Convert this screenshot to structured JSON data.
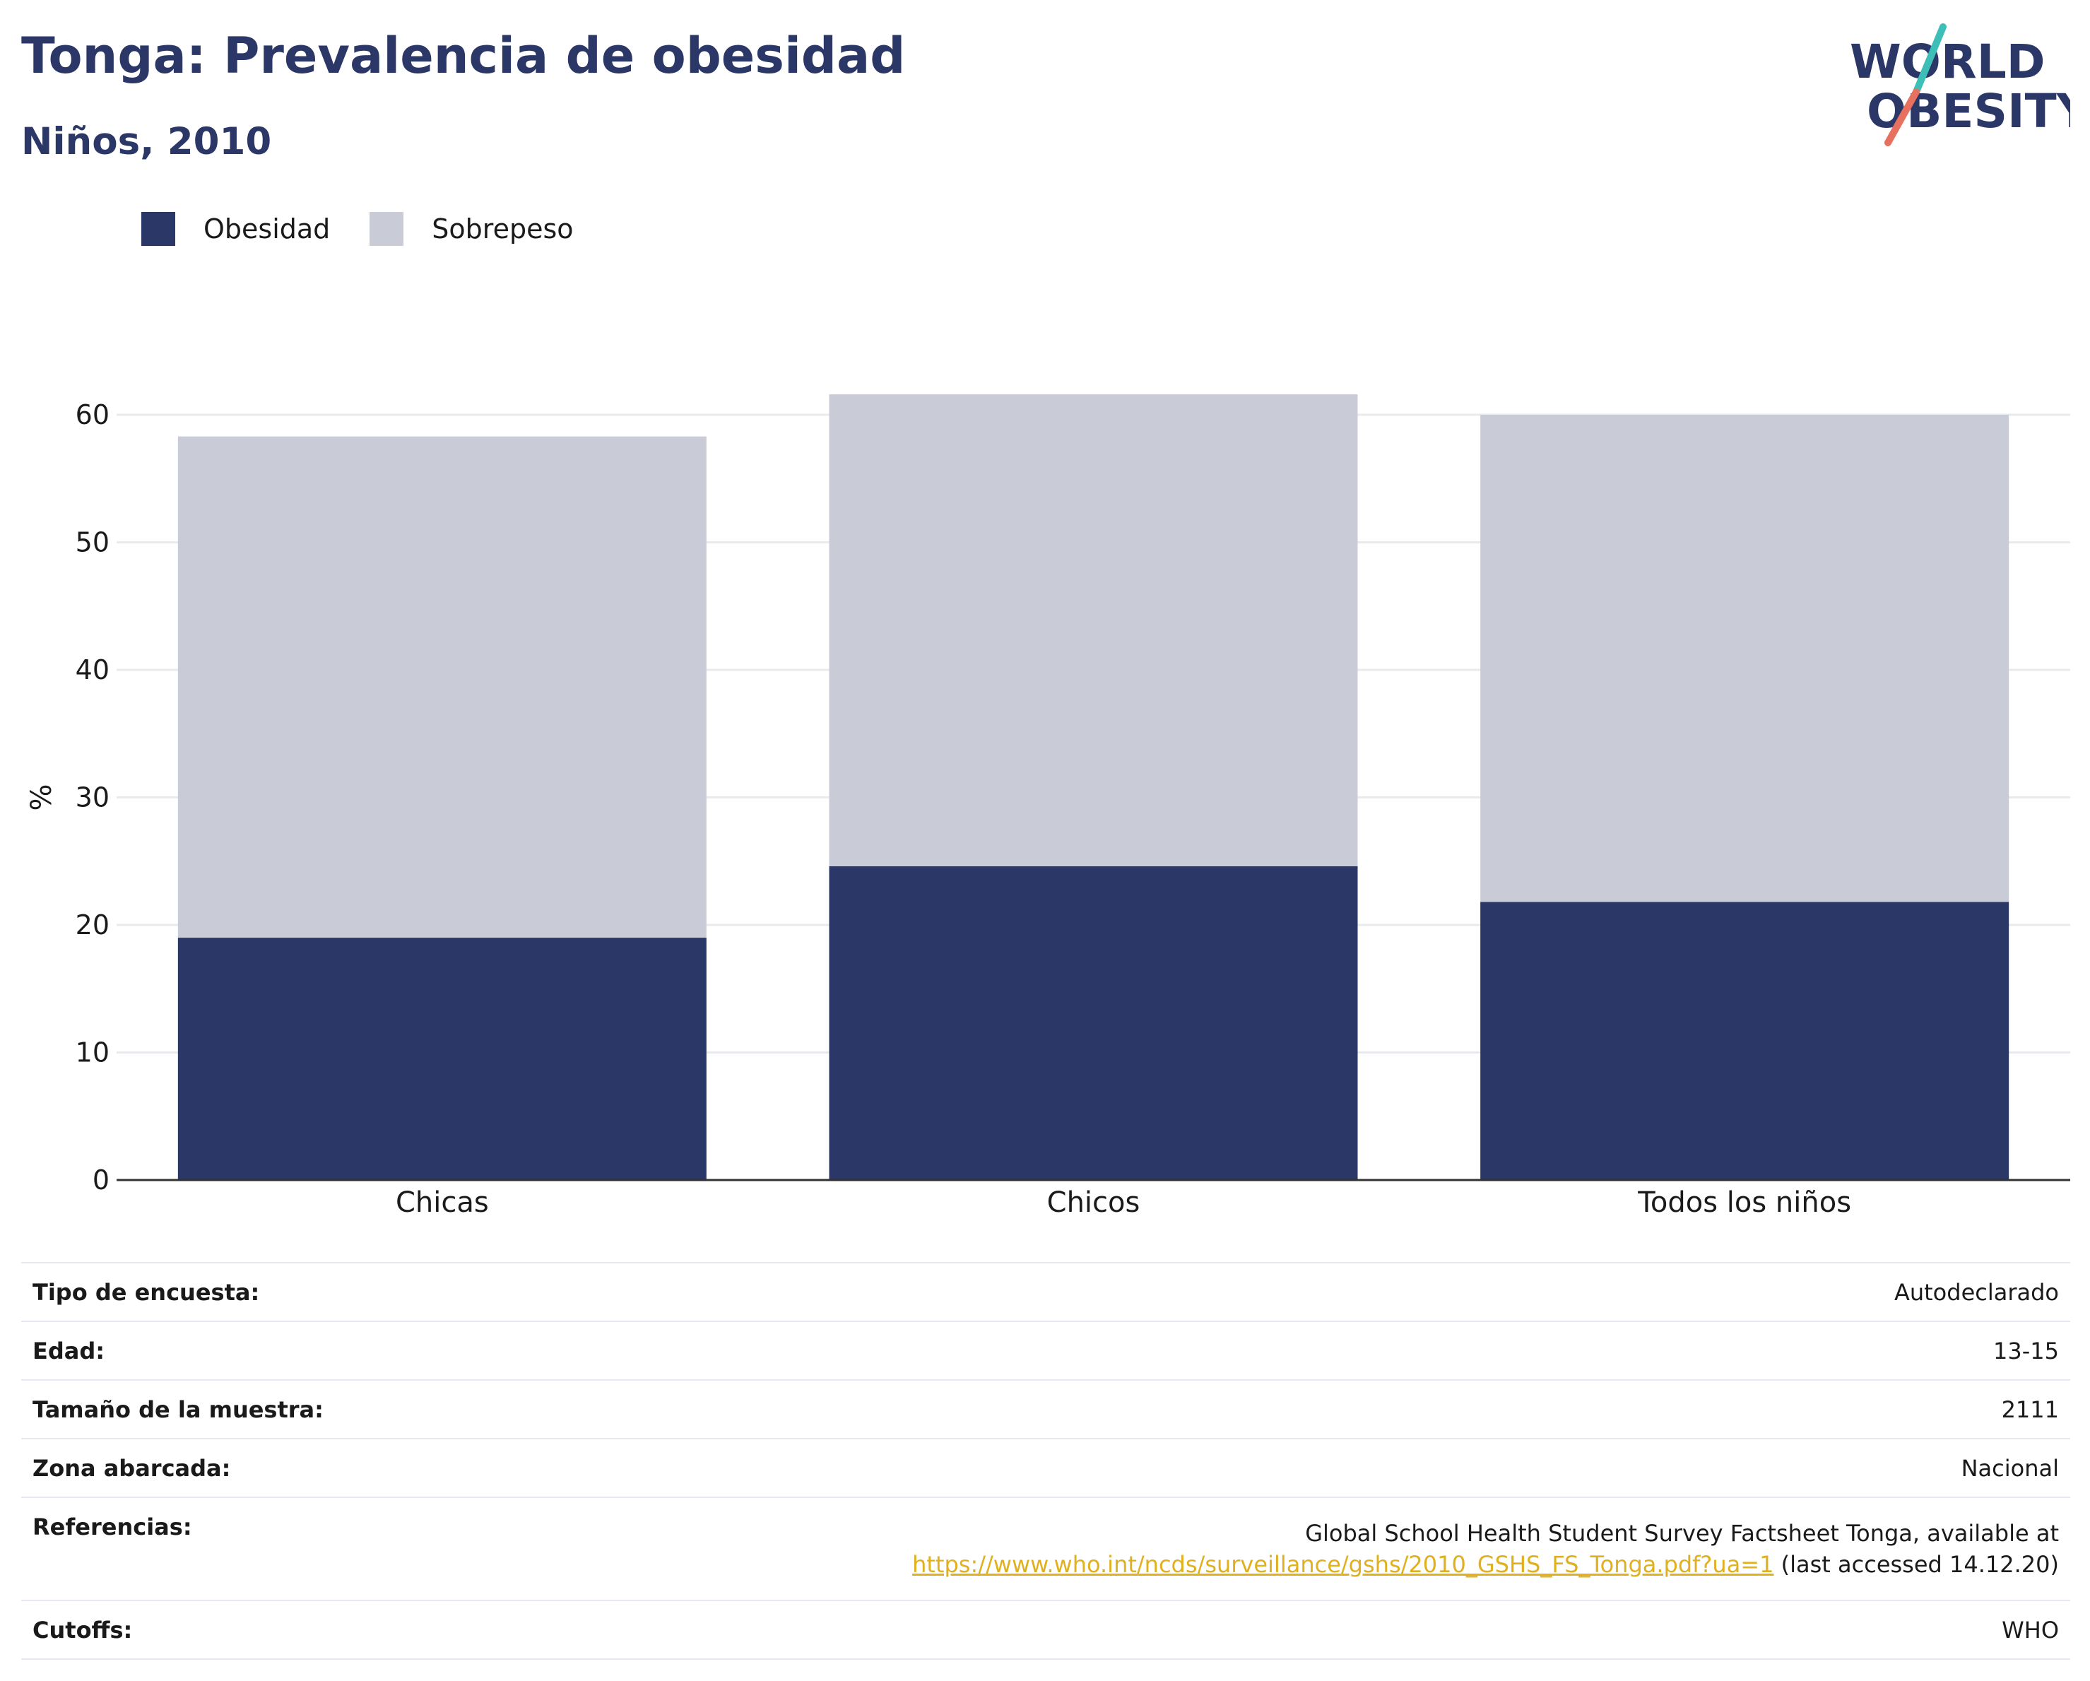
{
  "header": {
    "title": "Tonga: Prevalencia de obesidad",
    "subtitle": "Niños, 2010"
  },
  "logo": {
    "line1": "WORLD",
    "line2": "OBESITY",
    "icon": "world-obesity-logo"
  },
  "colors": {
    "obesity": "#2b3766",
    "overweight": "#c9cbd6",
    "accent_teal": "#3dbfb8",
    "accent_coral": "#e8705f",
    "link": "#e0b01f"
  },
  "chart_data": {
    "type": "bar",
    "stacked": true,
    "categories": [
      "Chicas",
      "Chicos",
      "Todos los niños"
    ],
    "series": [
      {
        "name": "Obesidad",
        "values": [
          19.0,
          24.6,
          21.8
        ]
      },
      {
        "name": "Sobrepeso",
        "values": [
          39.3,
          37.0,
          38.2
        ]
      }
    ],
    "ylabel": "%",
    "ylim": [
      0,
      64
    ],
    "yticks": [
      0,
      10,
      20,
      30,
      40,
      50,
      60
    ],
    "grid": true,
    "legend_position": "top-left"
  },
  "info": [
    {
      "label": "Tipo de encuesta:",
      "value": "Autodeclarado"
    },
    {
      "label": "Edad:",
      "value": "13-15"
    },
    {
      "label": "Tamaño de la muestra:",
      "value": "2111"
    },
    {
      "label": "Zona abarcada:",
      "value": "Nacional"
    }
  ],
  "reference": {
    "label": "Referencias:",
    "line1": "Global School Health Student Survey Factsheet Tonga, available at",
    "url": "https://www.who.int/ncds/surveillance/gshs/2010_GSHS_FS_Tonga.pdf?ua=1",
    "suffix": " (last accessed 14.12.20)"
  },
  "cutoffs": {
    "label": "Cutoffs:",
    "value": "WHO"
  }
}
